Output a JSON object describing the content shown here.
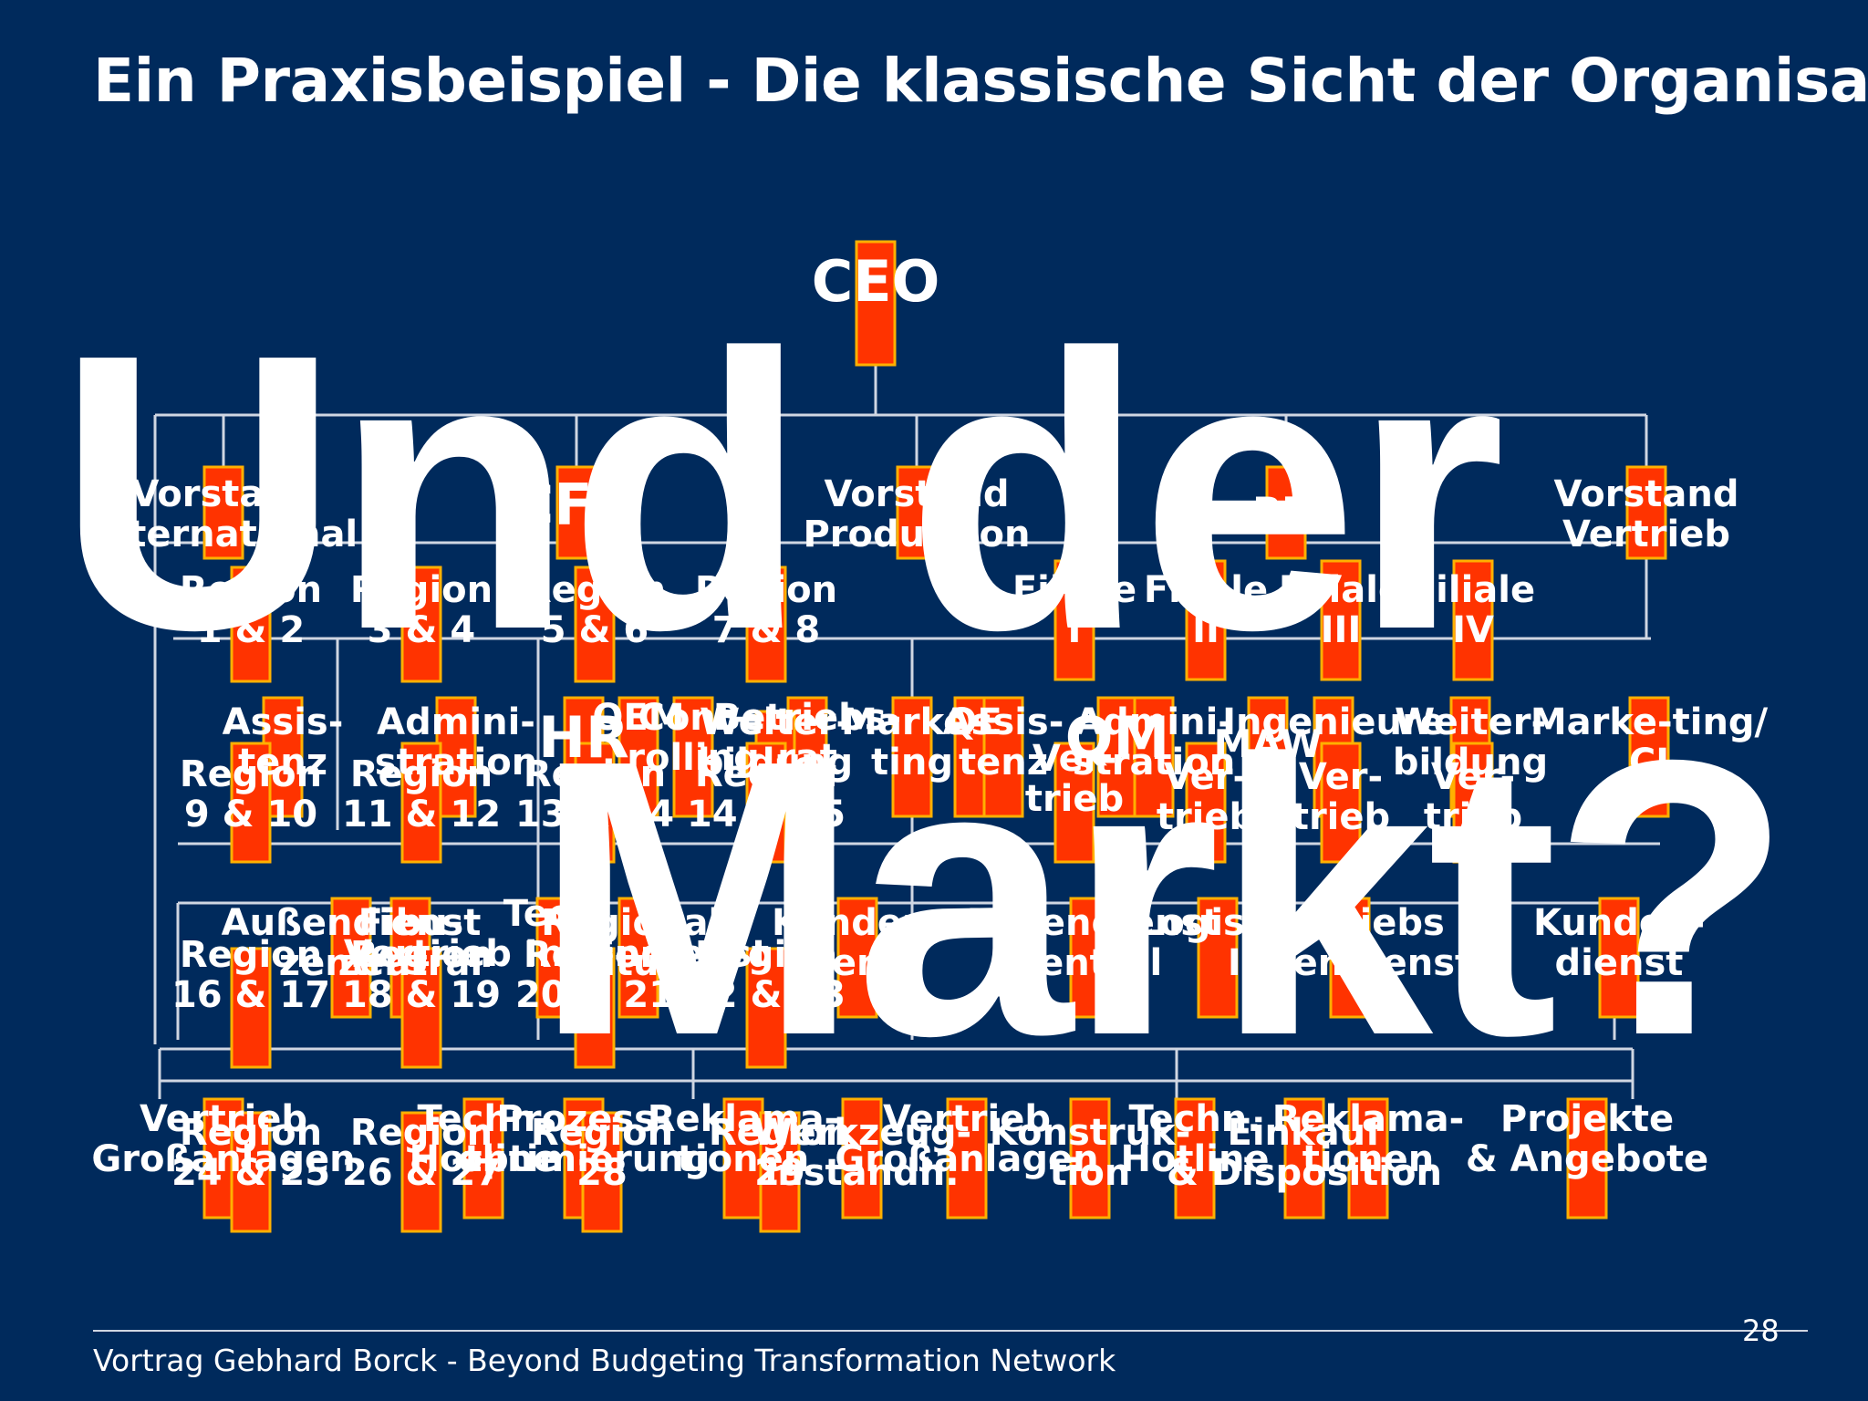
{
  "title": "Ein Praxisbeispiel - Die klassische Sicht der Organisation",
  "overlay": {
    "line1": "Und der",
    "line2": "Markt?"
  },
  "colors": {
    "background": "#002a5c",
    "box_fill": "#ff3300",
    "box_border": "#ffb000",
    "text": "#ffffff",
    "connector": "#d0d6e2"
  },
  "org_chart": {
    "nodes": [
      {
        "label": "CEO"
      },
      {
        "label": "Vorstand International"
      },
      {
        "label": "CFO"
      },
      {
        "label": "Vorstand Produktion"
      },
      {
        "label": "BM"
      },
      {
        "label": "Vorstand Vertrieb"
      },
      {
        "label": "Region 1 & 2"
      },
      {
        "label": "Region 3 & 4"
      },
      {
        "label": "Region 5 & 6"
      },
      {
        "label": "Region 7 & 8"
      },
      {
        "label": "Filiale I"
      },
      {
        "label": "Filiale II"
      },
      {
        "label": "Filiale III"
      },
      {
        "label": "Filiale IV"
      },
      {
        "label": "Assis-tenz"
      },
      {
        "label": "Admini-stration"
      },
      {
        "label": "HR"
      },
      {
        "label": "OEM"
      },
      {
        "label": "Cont-rolling"
      },
      {
        "label": "Betriebs-rat"
      },
      {
        "label": "Weiter-bildung"
      },
      {
        "label": "Marke-ting"
      },
      {
        "label": "QE"
      },
      {
        "label": "Assis-tenz"
      },
      {
        "label": "QM"
      },
      {
        "label": "Admini-stration"
      },
      {
        "label": "MAW"
      },
      {
        "label": "Ingenieure"
      },
      {
        "label": "Weiter-bildung"
      },
      {
        "label": "Marke-ting/ CI"
      },
      {
        "label": "Region 9 & 10"
      },
      {
        "label": "Region 11 & 12"
      },
      {
        "label": "Region 13 & 14"
      },
      {
        "label": "Region 14 & 15"
      },
      {
        "label": "Ver-trieb"
      },
      {
        "label": "Ver-trieb"
      },
      {
        "label": "Ver-trieb"
      },
      {
        "label": "Ver-trieb"
      },
      {
        "label": "Außendienst zentral"
      },
      {
        "label": "Fibu-zentral"
      },
      {
        "label": "Tech. Vertrieb Innendienst"
      },
      {
        "label": "Regional-leitung"
      },
      {
        "label": "Kunden-dienst"
      },
      {
        "label": "Außendienst zentral"
      },
      {
        "label": "Logistik"
      },
      {
        "label": "Vertriebs Innendienst"
      },
      {
        "label": "Kunden-dienst"
      },
      {
        "label": "Region 16 & 17"
      },
      {
        "label": "Region 18 & 19"
      },
      {
        "label": "Region 20 & 21"
      },
      {
        "label": "Region 22 & 23"
      },
      {
        "label": "Vertrieb Großanlagen"
      },
      {
        "label": "Techn. Hotline"
      },
      {
        "label": "Prozess-optimierung"
      },
      {
        "label": "Reklama-tionen"
      },
      {
        "label": "Werkzeug-instandh."
      },
      {
        "label": "Vertrieb Großanlagen"
      },
      {
        "label": "Konstruk-tion"
      },
      {
        "label": "Techn. Hotline"
      },
      {
        "label": "Einkauf & Disposition"
      },
      {
        "label": "Reklama-tionen"
      },
      {
        "label": "Projekte & Angebote"
      },
      {
        "label": "Region 24 & 25"
      },
      {
        "label": "Region 26 & 27"
      },
      {
        "label": "Region 28"
      },
      {
        "label": "Region 29"
      }
    ]
  },
  "footer": {
    "text": "Vortrag Gebhard Borck - Beyond Budgeting Transformation Network",
    "page": "28"
  }
}
